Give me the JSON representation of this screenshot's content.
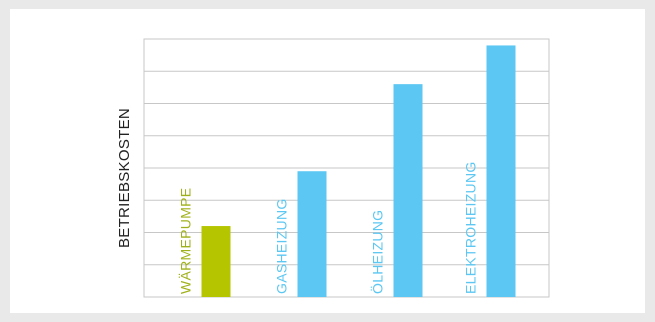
{
  "chart_data": {
    "type": "bar",
    "title": "",
    "xlabel": "",
    "ylabel": "BETRIEBSKOSTEN",
    "ylim": [
      0,
      8
    ],
    "grid": true,
    "gridlines_y": 8,
    "categories": [
      "WÄRMEPUMPE",
      "GASHEIZUNG",
      "ÖLHEIZUNG",
      "ELEKTROHEIZUNG"
    ],
    "values": [
      2.2,
      3.9,
      6.6,
      7.8
    ],
    "bar_colors": [
      "#b5c600",
      "#5bc7f2",
      "#5bc7f2",
      "#5bc7f2"
    ],
    "label_colors": [
      "#9fb11a",
      "#5bc7f2",
      "#5bc7f2",
      "#5bc7f2"
    ]
  }
}
